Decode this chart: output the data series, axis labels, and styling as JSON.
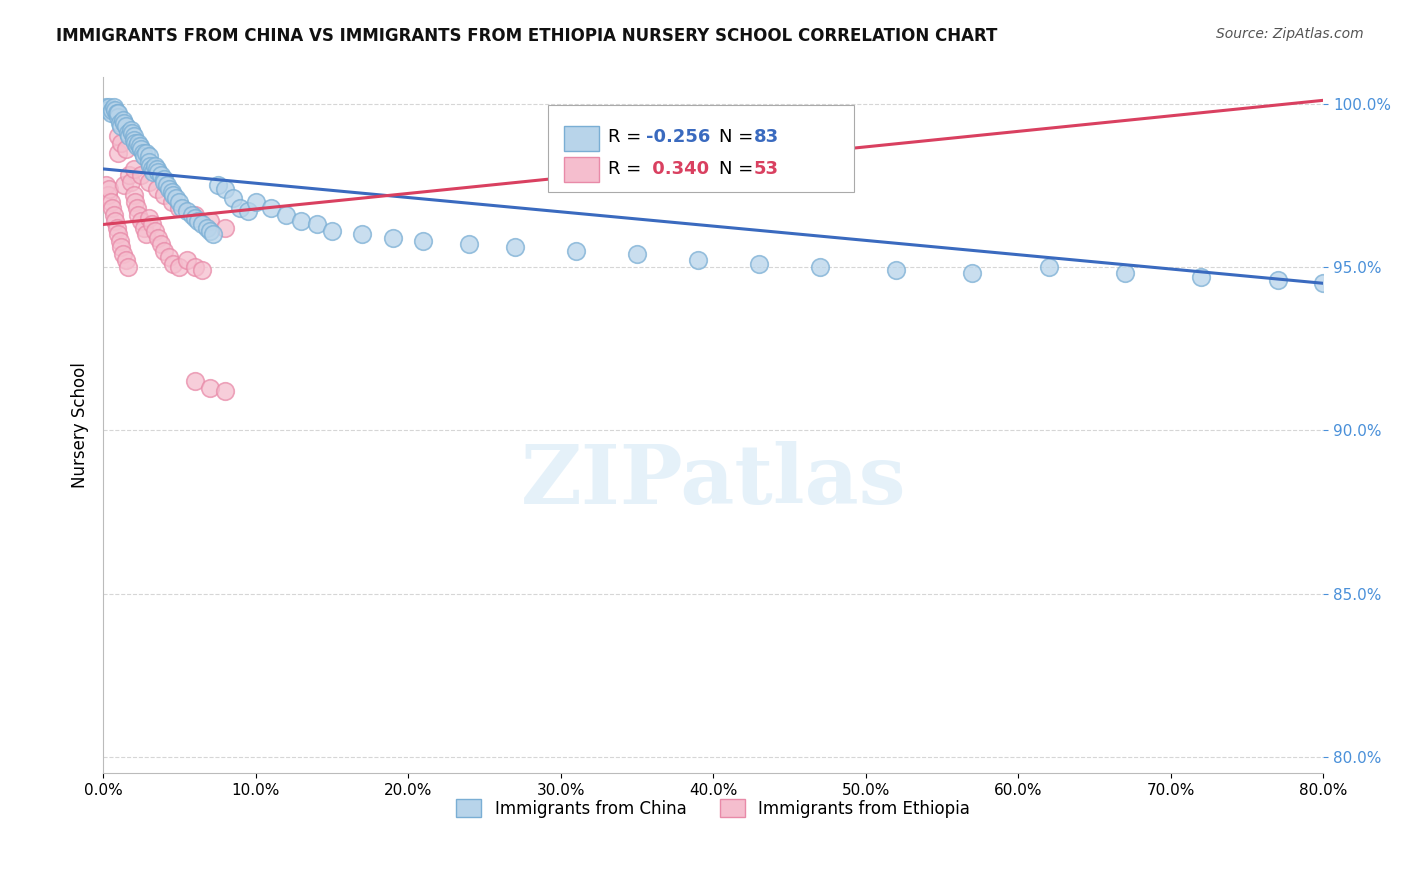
{
  "title": "IMMIGRANTS FROM CHINA VS IMMIGRANTS FROM ETHIOPIA NURSERY SCHOOL CORRELATION CHART",
  "source": "Source: ZipAtlas.com",
  "ylabel": "Nursery School",
  "xlim": [
    0.0,
    0.8
  ],
  "ylim": [
    0.795,
    1.008
  ],
  "yticks": [
    0.8,
    0.85,
    0.9,
    0.95,
    1.0
  ],
  "ytick_labels": [
    "80.0%",
    "85.0%",
    "90.0%",
    "95.0%",
    "100.0%"
  ],
  "xticks": [
    0.0,
    0.1,
    0.2,
    0.3,
    0.4,
    0.5,
    0.6,
    0.7,
    0.8
  ],
  "xtick_labels": [
    "0.0%",
    "10.0%",
    "20.0%",
    "30.0%",
    "40.0%",
    "50.0%",
    "60.0%",
    "70.0%",
    "80.0%"
  ],
  "china_color": "#b8d4ea",
  "china_edge_color": "#7aaed4",
  "ethiopia_color": "#f5bece",
  "ethiopia_edge_color": "#e88aa8",
  "trend_china_color": "#3a6abf",
  "trend_ethiopia_color": "#d94060",
  "legend_china_label": "Immigrants from China",
  "legend_ethiopia_label": "Immigrants from Ethiopia",
  "R_china": -0.256,
  "N_china": 83,
  "R_ethiopia": 0.34,
  "N_ethiopia": 53,
  "watermark": "ZIPatlas",
  "china_trend_x": [
    0.0,
    0.8
  ],
  "china_trend_y": [
    0.98,
    0.945
  ],
  "ethiopia_trend_x": [
    0.0,
    0.8
  ],
  "ethiopia_trend_y": [
    0.963,
    1.001
  ],
  "china_x": [
    0.002,
    0.003,
    0.004,
    0.005,
    0.006,
    0.007,
    0.008,
    0.009,
    0.01,
    0.01,
    0.011,
    0.012,
    0.013,
    0.014,
    0.015,
    0.016,
    0.017,
    0.018,
    0.019,
    0.02,
    0.02,
    0.021,
    0.022,
    0.023,
    0.024,
    0.025,
    0.026,
    0.027,
    0.028,
    0.03,
    0.03,
    0.031,
    0.032,
    0.033,
    0.034,
    0.035,
    0.036,
    0.038,
    0.04,
    0.04,
    0.042,
    0.043,
    0.045,
    0.046,
    0.048,
    0.05,
    0.052,
    0.055,
    0.058,
    0.06,
    0.062,
    0.065,
    0.068,
    0.07,
    0.072,
    0.075,
    0.08,
    0.085,
    0.09,
    0.095,
    0.1,
    0.11,
    0.12,
    0.13,
    0.14,
    0.15,
    0.17,
    0.19,
    0.21,
    0.24,
    0.27,
    0.31,
    0.35,
    0.39,
    0.43,
    0.47,
    0.52,
    0.57,
    0.62,
    0.67,
    0.72,
    0.77,
    0.8
  ],
  "china_y": [
    0.999,
    0.998,
    0.999,
    0.997,
    0.998,
    0.999,
    0.998,
    0.997,
    0.996,
    0.997,
    0.994,
    0.993,
    0.995,
    0.994,
    0.993,
    0.991,
    0.99,
    0.992,
    0.991,
    0.99,
    0.989,
    0.988,
    0.987,
    0.988,
    0.987,
    0.986,
    0.985,
    0.984,
    0.985,
    0.984,
    0.982,
    0.981,
    0.98,
    0.979,
    0.981,
    0.98,
    0.979,
    0.978,
    0.977,
    0.976,
    0.975,
    0.974,
    0.973,
    0.972,
    0.971,
    0.97,
    0.968,
    0.967,
    0.966,
    0.965,
    0.964,
    0.963,
    0.962,
    0.961,
    0.96,
    0.975,
    0.974,
    0.971,
    0.968,
    0.967,
    0.97,
    0.968,
    0.966,
    0.964,
    0.963,
    0.961,
    0.96,
    0.959,
    0.958,
    0.957,
    0.956,
    0.955,
    0.954,
    0.952,
    0.951,
    0.95,
    0.949,
    0.948,
    0.95,
    0.948,
    0.947,
    0.946,
    0.945
  ],
  "ethiopia_x": [
    0.002,
    0.003,
    0.004,
    0.005,
    0.006,
    0.007,
    0.008,
    0.009,
    0.01,
    0.01,
    0.011,
    0.012,
    0.013,
    0.014,
    0.015,
    0.016,
    0.017,
    0.018,
    0.02,
    0.021,
    0.022,
    0.023,
    0.025,
    0.027,
    0.028,
    0.03,
    0.032,
    0.034,
    0.036,
    0.038,
    0.04,
    0.043,
    0.046,
    0.05,
    0.055,
    0.06,
    0.065,
    0.02,
    0.025,
    0.03,
    0.035,
    0.04,
    0.045,
    0.01,
    0.012,
    0.015,
    0.05,
    0.06,
    0.07,
    0.08,
    0.06,
    0.07,
    0.08
  ],
  "ethiopia_y": [
    0.975,
    0.972,
    0.974,
    0.97,
    0.968,
    0.966,
    0.964,
    0.962,
    0.96,
    0.985,
    0.958,
    0.956,
    0.954,
    0.975,
    0.952,
    0.95,
    0.978,
    0.976,
    0.972,
    0.97,
    0.968,
    0.966,
    0.964,
    0.962,
    0.96,
    0.965,
    0.963,
    0.961,
    0.959,
    0.957,
    0.955,
    0.953,
    0.951,
    0.95,
    0.952,
    0.95,
    0.949,
    0.98,
    0.978,
    0.976,
    0.974,
    0.972,
    0.97,
    0.99,
    0.988,
    0.986,
    0.968,
    0.966,
    0.964,
    0.962,
    0.915,
    0.913,
    0.912
  ]
}
